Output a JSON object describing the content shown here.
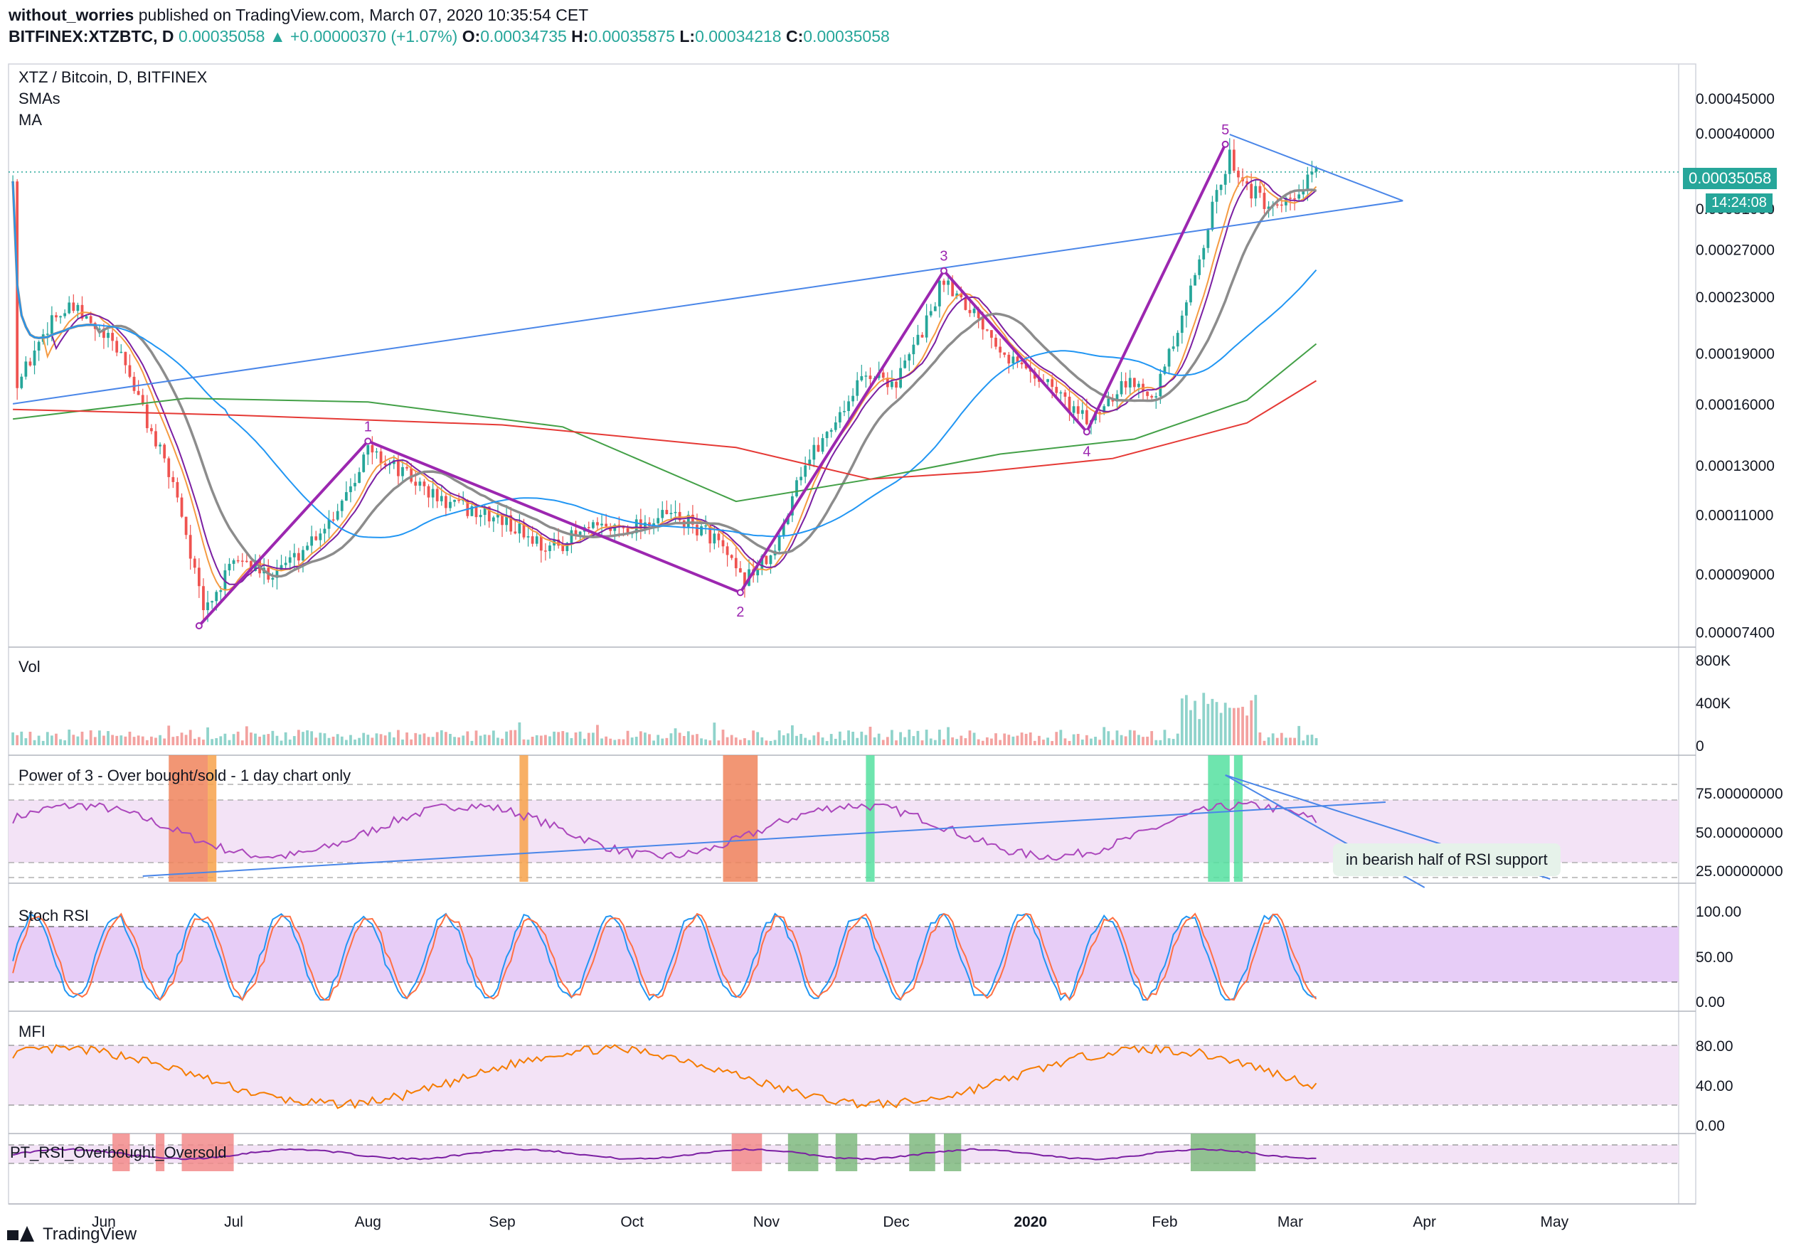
{
  "header": {
    "author": "without_worries",
    "published": " published on TradingView.com, March 07, 2020 10:35:54 CET",
    "symbol": "BITFINEX:XTZBTC, D",
    "last": "0.00035058",
    "change": "▲ +0.00000370 (+1.07%)",
    "o_label": "O:",
    "o": "0.00034735",
    "h_label": "H:",
    "h": "0.00035875",
    "l_label": "L:",
    "l": "0.00034218",
    "c_label": "C:",
    "c": "0.00035058"
  },
  "panes": {
    "main_title": "XTZ / Bitcoin, D, BITFINEX",
    "main_sub1": "SMAs",
    "main_sub2": "MA",
    "vol_title": "Vol",
    "pow3_title": "Power of 3 - Over bought/sold - 1 day chart only",
    "stoch_title": "Stoch RSI",
    "mfi_title": "MFI",
    "ptrsi_title": "PT_RSI_Overbought_Oversold"
  },
  "price_tag": "0.00035058",
  "time_tag": "14:24:08",
  "annotation": "in bearish half of RSI support",
  "footer": {
    "brand": "TradingView"
  },
  "colors": {
    "up": "#26a69a",
    "down": "#ef5350",
    "wave": "#9c27b0",
    "trend": "#4a86e8"
  },
  "chart_data": {
    "type": "line",
    "price_axis": [
      "0.00045000",
      "0.00040000",
      "0.00031000",
      "0.00027000",
      "0.00023000",
      "0.00019000",
      "0.00016000",
      "0.00013000",
      "0.00011000",
      "0.00009000",
      "0.00007400"
    ],
    "price_axis_values": [
      0.00045,
      0.0004,
      0.00031,
      0.00027,
      0.00023,
      0.00019,
      0.00016,
      0.00013,
      0.00011,
      9e-05,
      7.4e-05
    ],
    "price_scale": "log",
    "vol_axis": [
      "800K",
      "400K",
      "0"
    ],
    "pow3_axis": [
      "75.00000000",
      "50.00000000",
      "25.00000000"
    ],
    "stoch_axis": [
      "100.00",
      "50.00",
      "0.00"
    ],
    "mfi_axis": [
      "80.00",
      "40.00",
      "0.00"
    ],
    "time_axis": [
      "Jun",
      "Jul",
      "Aug",
      "Sep",
      "Oct",
      "Nov",
      "Dec",
      "2020",
      "Feb",
      "Mar",
      "Apr",
      "May"
    ],
    "elliott_wave": {
      "labels": [
        "1",
        "2",
        "3",
        "4",
        "5"
      ],
      "points": [
        {
          "label": "",
          "date": "2019-06-23",
          "price": 7.55e-05
        },
        {
          "label": "1",
          "date": "2019-08-01",
          "price": 0.000141
        },
        {
          "label": "2",
          "date": "2019-10-26",
          "price": 8.45e-05
        },
        {
          "label": "3",
          "date": "2019-12-12",
          "price": 0.000251
        },
        {
          "label": "4",
          "date": "2020-01-14",
          "price": 0.0001455
        },
        {
          "label": "5",
          "date": "2020-02-15",
          "price": 0.000385
        }
      ]
    }
  }
}
